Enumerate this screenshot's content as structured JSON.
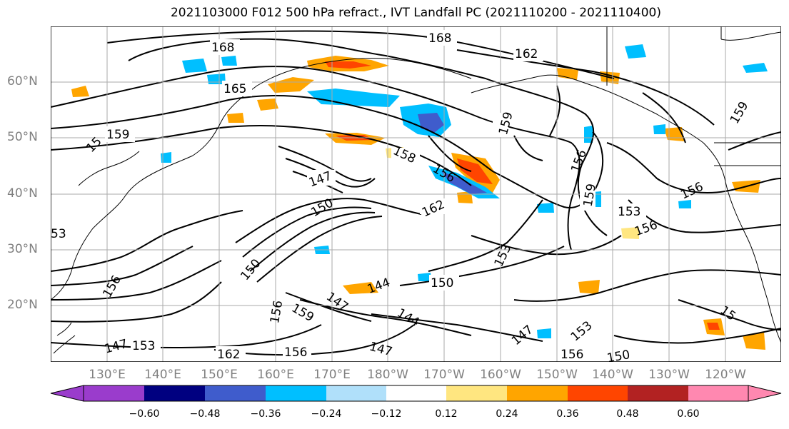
{
  "title": "2021103000 F012 500 hPa refract., IVT Landfall PC (2021110200 - 2021110400)",
  "lat_labels": [
    "60°N",
    "50°N",
    "40°N",
    "30°N",
    "20°N"
  ],
  "lon_labels": [
    "130°E",
    "140°E",
    "150°E",
    "160°E",
    "170°E",
    "180°W",
    "170°W",
    "160°W",
    "150°W",
    "140°W",
    "130°W",
    "120°W"
  ],
  "colorbar": {
    "ticks": [
      "−0.60",
      "−0.48",
      "−0.36",
      "−0.24",
      "−0.12",
      "0.12",
      "0.24",
      "0.36",
      "0.48",
      "0.60"
    ],
    "colors": [
      "#9a3ccc",
      "#000080",
      "#3f5ccc",
      "#00bfff",
      "#b0e0fa",
      "#ffffff",
      "#ffe680",
      "#ffa500",
      "#ff4500",
      "#b22222",
      "#ff88b0"
    ]
  },
  "contour_labels": [
    "168",
    "168",
    "162",
    "165",
    "159",
    "15",
    "159",
    "158",
    "156",
    "147",
    "150",
    "162",
    "156",
    "159",
    "156",
    "153",
    "156",
    "153",
    "150",
    "144",
    "147",
    "144",
    "147",
    "150",
    "156",
    "159",
    "156",
    "162",
    "156",
    "153",
    "147",
    "156",
    "147",
    "153",
    "150",
    "15",
    "53",
    "159"
  ]
}
